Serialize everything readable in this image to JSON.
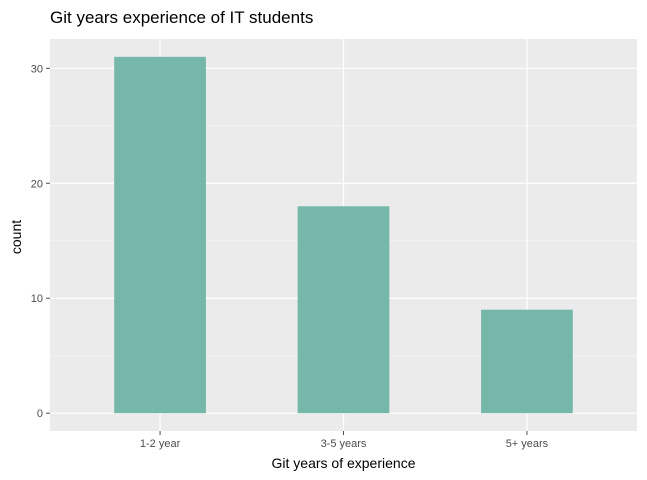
{
  "chart_data": {
    "type": "bar",
    "title": "Git years experience of IT students",
    "xlabel": "Git years of experience",
    "ylabel": "count",
    "categories": [
      "1-2 year",
      "3-5 years",
      "5+ years"
    ],
    "values": [
      31,
      18,
      9
    ],
    "ylim": [
      -1.55,
      32.55
    ],
    "yticks": [
      0,
      10,
      20,
      30
    ],
    "grid": true,
    "legend": "none",
    "colors": {
      "bar": "#75b8a9",
      "panel": "#ebebeb",
      "grid_major": "#ffffff",
      "grid_minor": "#f5f5f5",
      "tick": "#4d4d4d"
    }
  }
}
